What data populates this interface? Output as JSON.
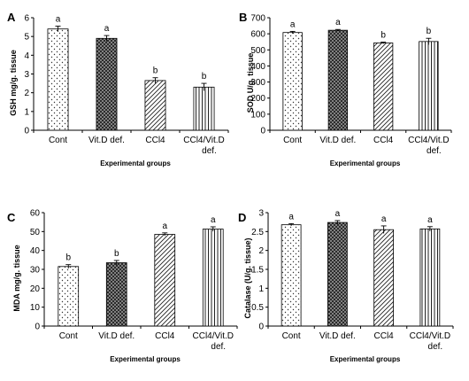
{
  "chart_data": [
    {
      "type": "bar",
      "panel_label": "A",
      "categories": [
        "Cont",
        "Vit.D def.",
        "CCl4",
        "CCl4/Vit.D def."
      ],
      "values": [
        5.4,
        4.9,
        2.65,
        2.3
      ],
      "errors": [
        0.15,
        0.15,
        0.15,
        0.2
      ],
      "significance": [
        "a",
        "a",
        "b",
        "b"
      ],
      "xlabel": "Experimental groups",
      "ylabel": "GSH mg/g. tissue",
      "ylim": [
        0,
        6
      ],
      "yticks": [
        0,
        1,
        2,
        3,
        4,
        5,
        6
      ],
      "grid": false
    },
    {
      "type": "bar",
      "panel_label": "B",
      "categories": [
        "Cont",
        "Vit.D def.",
        "CCl4",
        "CCl4/Vit.D def."
      ],
      "values": [
        608,
        622,
        543,
        552
      ],
      "errors": [
        7,
        5,
        5,
        20
      ],
      "significance": [
        "a",
        "a",
        "b",
        "b"
      ],
      "xlabel": "Experimental groups",
      "ylabel": "SOD U/g. tissue",
      "ylim": [
        0,
        700
      ],
      "yticks": [
        0,
        100,
        200,
        300,
        400,
        500,
        600,
        700
      ],
      "grid": false
    },
    {
      "type": "bar",
      "panel_label": "C",
      "categories": [
        "Cont",
        "Vit.D def.",
        "CCl4",
        "CCl4/Vit.D def."
      ],
      "values": [
        31.5,
        33.5,
        48.5,
        51.3
      ],
      "errors": [
        1,
        1.2,
        0.8,
        1.2
      ],
      "significance": [
        "b",
        "b",
        "a",
        "a"
      ],
      "xlabel": "Experimental groups",
      "ylabel": "MDA mg/g. tissue",
      "ylim": [
        0,
        60
      ],
      "yticks": [
        0,
        10,
        20,
        30,
        40,
        50,
        60
      ],
      "grid": false
    },
    {
      "type": "bar",
      "panel_label": "D",
      "categories": [
        "Cont",
        "Vit.D def.",
        "CCl4",
        "CCl4/Vit.D def."
      ],
      "values": [
        2.68,
        2.74,
        2.55,
        2.57
      ],
      "errors": [
        0.03,
        0.05,
        0.1,
        0.06
      ],
      "significance": [
        "a",
        "a",
        "a",
        "a"
      ],
      "xlabel": "Experimental groups",
      "ylabel": "Catalase (U/g. tissue)",
      "ylim": [
        0,
        3
      ],
      "yticks": [
        0,
        0.5,
        1,
        1.5,
        2,
        2.5,
        3
      ],
      "grid": false
    }
  ]
}
